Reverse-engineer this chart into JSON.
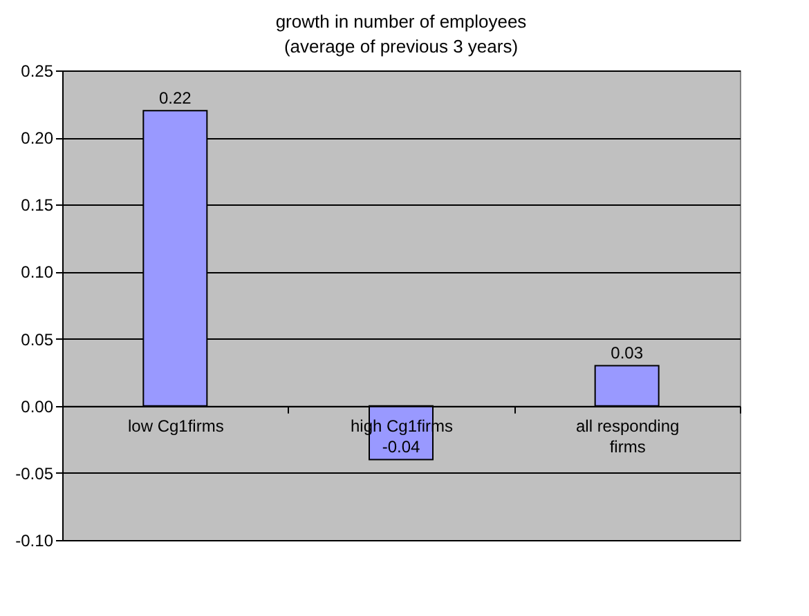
{
  "chart_data": {
    "type": "bar",
    "title": [
      "growth in number of employees",
      "(average of previous 3 years)"
    ],
    "categories": [
      "low Cg1firms",
      "high Cg1firms",
      "all responding firms"
    ],
    "values": [
      0.22,
      -0.04,
      0.03
    ],
    "color": "#9999ff",
    "ylim": [
      -0.1,
      0.25
    ],
    "yticks": [
      {
        "value": -0.1,
        "label": "-0.10"
      },
      {
        "value": -0.05,
        "label": "-0.05"
      },
      {
        "value": 0,
        "label": "0.00"
      },
      {
        "value": 0.05,
        "label": "0.05"
      },
      {
        "value": 0.1,
        "label": "0.10"
      },
      {
        "value": 0.15,
        "label": "0.15"
      },
      {
        "value": 0.2,
        "label": "0.20"
      },
      {
        "value": 0.25,
        "label": "0.25"
      }
    ],
    "grid": true,
    "data_labels": true
  }
}
